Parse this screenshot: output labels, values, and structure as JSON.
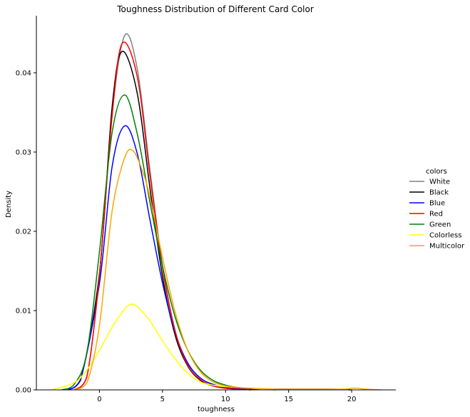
{
  "chart_data": {
    "type": "line",
    "title": "Toughness Distribution of Different Card Color",
    "xlabel": "toughness",
    "ylabel": "Density",
    "xlim": [
      -5,
      23.5
    ],
    "ylim": [
      0,
      0.0472
    ],
    "xticks": [
      0,
      5,
      10,
      15,
      20
    ],
    "yticks": [
      0.0,
      0.01,
      0.02,
      0.03,
      0.04
    ],
    "ytick_labels": [
      "0.00",
      "0.01",
      "0.02",
      "0.03",
      "0.04"
    ],
    "grid": false,
    "legend": {
      "title": "colors",
      "placement": "right"
    },
    "series": [
      {
        "name": "White",
        "color": "#808080",
        "x": [
          -2,
          -1,
          0,
          1,
          2,
          3,
          4,
          5,
          6,
          7,
          8,
          9,
          10,
          11,
          12
        ],
        "y": [
          0.0,
          0.0017,
          0.0144,
          0.0347,
          0.0447,
          0.0405,
          0.0278,
          0.0157,
          0.0075,
          0.0032,
          0.0013,
          0.0006,
          0.0003,
          0.0001,
          0.0
        ]
      },
      {
        "name": "Black",
        "color": "#000000",
        "x": [
          -2.5,
          -1.5,
          0,
          1,
          1.8,
          3,
          4,
          5,
          6,
          7,
          8,
          9,
          10,
          11,
          12,
          13,
          14
        ],
        "y": [
          0.0,
          0.0012,
          0.0147,
          0.0356,
          0.0427,
          0.0374,
          0.0255,
          0.0143,
          0.0069,
          0.003,
          0.0012,
          0.0005,
          0.0002,
          0.0001,
          0.0001,
          0.0001,
          0.0
        ]
      },
      {
        "name": "Blue",
        "color": "#0000ff",
        "x": [
          -2.5,
          -1.5,
          0,
          1,
          2,
          3,
          4,
          5,
          6,
          7,
          8,
          9,
          10,
          11,
          12,
          14,
          16,
          18,
          20
        ],
        "y": [
          0.0,
          0.0013,
          0.0134,
          0.0281,
          0.0333,
          0.0298,
          0.0215,
          0.0135,
          0.0072,
          0.0034,
          0.0015,
          0.0007,
          0.0003,
          0.0002,
          0.0001,
          0.0001,
          0.0001,
          0.0001,
          0.0
        ]
      },
      {
        "name": "Red",
        "color": "#ff0000",
        "x": [
          -2,
          -1,
          0,
          1,
          1.8,
          3,
          4,
          5,
          6,
          7,
          8,
          9,
          10,
          11,
          12
        ],
        "y": [
          0.0,
          0.0016,
          0.0145,
          0.0345,
          0.0437,
          0.0395,
          0.0271,
          0.0154,
          0.0074,
          0.0031,
          0.0013,
          0.0005,
          0.0002,
          0.0001,
          0.0
        ]
      },
      {
        "name": "Green",
        "color": "#008000",
        "x": [
          -3,
          -2,
          -1,
          0,
          1,
          2,
          3,
          4,
          5,
          6,
          7,
          8,
          9,
          10,
          11,
          12,
          13,
          14
        ],
        "y": [
          0.0,
          0.0007,
          0.0047,
          0.0174,
          0.0324,
          0.0372,
          0.0323,
          0.0237,
          0.0156,
          0.0092,
          0.005,
          0.0025,
          0.0012,
          0.0006,
          0.0003,
          0.0002,
          0.0001,
          0.0
        ]
      },
      {
        "name": "Colorless",
        "color": "#ffff00",
        "x": [
          -3.8,
          -2,
          -1,
          0,
          1,
          2,
          2.5,
          3,
          4,
          5,
          6,
          7,
          8,
          9,
          10,
          11,
          12,
          13,
          14
        ],
        "y": [
          0.0,
          0.0009,
          0.0025,
          0.005,
          0.0079,
          0.0102,
          0.0108,
          0.0105,
          0.0087,
          0.0062,
          0.0039,
          0.0021,
          0.001,
          0.0006,
          0.0004,
          0.0003,
          0.0002,
          0.0001,
          0.0
        ]
      },
      {
        "name": "Multicolor",
        "color": "#ffa500",
        "x": [
          -2,
          -1,
          0,
          1,
          2,
          2.7,
          3.5,
          4,
          5,
          6,
          7,
          8,
          9,
          10,
          11,
          12,
          14,
          16,
          18,
          19.5,
          20,
          20.5,
          21,
          22.3
        ],
        "y": [
          0.0,
          0.0009,
          0.0081,
          0.0225,
          0.0293,
          0.0301,
          0.0272,
          0.0243,
          0.0167,
          0.0098,
          0.005,
          0.0023,
          0.001,
          0.0005,
          0.0003,
          0.0002,
          0.0001,
          0.0001,
          0.0001,
          0.0001,
          0.0002,
          0.0002,
          0.0001,
          0.0
        ]
      }
    ]
  }
}
